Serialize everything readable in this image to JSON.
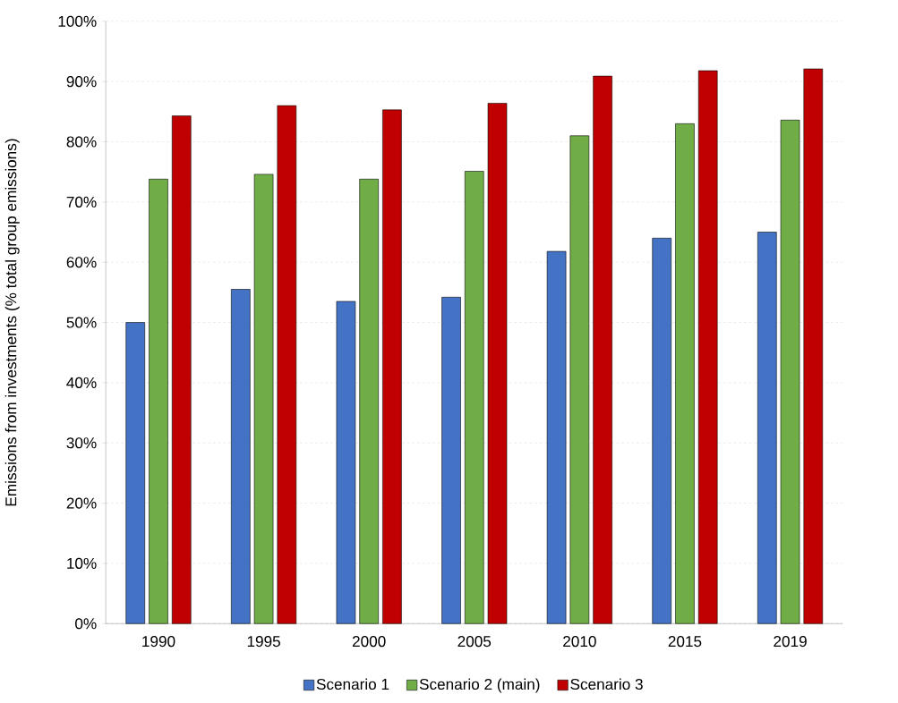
{
  "chart_data": {
    "type": "bar",
    "ylabel": "Emissions from investments (% total group emissions)",
    "categories": [
      "1990",
      "1995",
      "2000",
      "2005",
      "2010",
      "2015",
      "2019"
    ],
    "series": [
      {
        "name": "Scenario 1",
        "color": "#4472c4",
        "values": [
          50.0,
          55.5,
          53.5,
          54.2,
          61.8,
          64.0,
          65.0
        ]
      },
      {
        "name": "Scenario 2 (main)",
        "color": "#70ad47",
        "values": [
          73.8,
          74.6,
          73.8,
          75.1,
          81.0,
          83.0,
          83.6
        ]
      },
      {
        "name": "Scenario 3",
        "color": "#c00000",
        "values": [
          84.3,
          86.0,
          85.3,
          86.4,
          90.9,
          91.8,
          92.1
        ]
      }
    ],
    "ylim": [
      0,
      100
    ],
    "yticks": [
      {
        "value": 0,
        "label": "0%"
      },
      {
        "value": 10,
        "label": "10%"
      },
      {
        "value": 20,
        "label": "20%"
      },
      {
        "value": 30,
        "label": "30%"
      },
      {
        "value": 40,
        "label": "40%"
      },
      {
        "value": 50,
        "label": "50%"
      },
      {
        "value": 60,
        "label": "60%"
      },
      {
        "value": 70,
        "label": "70%"
      },
      {
        "value": 80,
        "label": "80%"
      },
      {
        "value": 90,
        "label": "90%"
      },
      {
        "value": 100,
        "label": "100%"
      }
    ],
    "grid": "y",
    "legend": "bottom"
  }
}
